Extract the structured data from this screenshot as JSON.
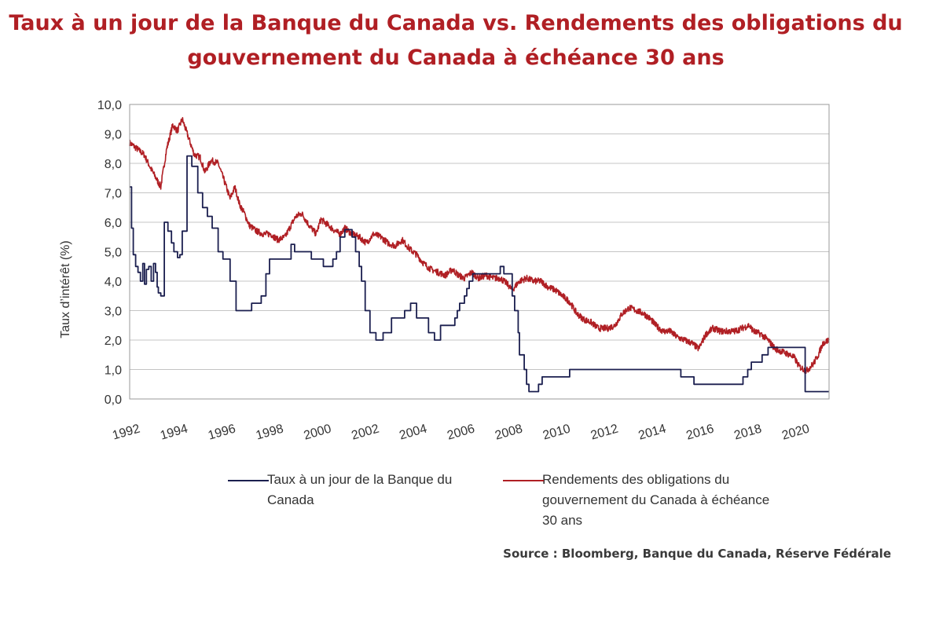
{
  "title_line1": "Taux à un jour de la Banque du Canada vs. Rendements des obligations du",
  "title_line2": "gouvernement du Canada à échéance 30 ans",
  "source": "Source : Bloomberg, Banque du Canada, Réserve Fédérale",
  "chart_data": {
    "type": "line",
    "title": "Taux à un jour de la Banque du Canada vs. Rendements des obligations du gouvernement du Canada à échéance 30 ans",
    "xlabel": "",
    "ylabel": "Taux d’intérêt (%)",
    "xlim": [
      1992,
      2021.25
    ],
    "ylim": [
      0,
      10
    ],
    "x_ticks": [
      1992,
      1994,
      1996,
      1998,
      2000,
      2002,
      2004,
      2006,
      2008,
      2010,
      2012,
      2014,
      2016,
      2018,
      2020
    ],
    "x_tick_labels": [
      "1992",
      "1994",
      "1996",
      "1998",
      "2000",
      "2002",
      "2004",
      "2006",
      "2008",
      "2010",
      "2012",
      "2014",
      "2016",
      "2018",
      "2020"
    ],
    "y_ticks": [
      0,
      1,
      2,
      3,
      4,
      5,
      6,
      7,
      8,
      9,
      10
    ],
    "y_tick_labels": [
      "0,0",
      "1,0",
      "2,0",
      "3,0",
      "4,0",
      "5,0",
      "6,0",
      "7,0",
      "8,0",
      "9,0",
      "10,0"
    ],
    "grid": "horizontal",
    "legend_position": "bottom",
    "series": [
      {
        "name": "Taux à un jour de la Banque du Canada",
        "color": "#1b1f4f",
        "shape": "step",
        "x": [
          1992.0,
          1992.08,
          1992.15,
          1992.25,
          1992.35,
          1992.45,
          1992.55,
          1992.62,
          1992.7,
          1992.8,
          1992.9,
          1993.0,
          1993.08,
          1993.15,
          1993.2,
          1993.3,
          1993.45,
          1993.6,
          1993.75,
          1993.85,
          1994.0,
          1994.1,
          1994.2,
          1994.4,
          1994.6,
          1994.85,
          1995.05,
          1995.25,
          1995.45,
          1995.7,
          1995.9,
          1996.0,
          1996.2,
          1996.45,
          1996.9,
          1997.1,
          1997.5,
          1997.7,
          1997.85,
          1998.3,
          1998.75,
          1998.9,
          1999.1,
          1999.6,
          2000.1,
          2000.5,
          2000.65,
          2000.8,
          2001.0,
          2001.15,
          2001.3,
          2001.45,
          2001.6,
          2001.7,
          2001.85,
          2002.05,
          2002.3,
          2002.5,
          2002.6,
          2002.95,
          2003.3,
          2003.5,
          2003.75,
          2004.0,
          2004.15,
          2004.5,
          2004.75,
          2004.9,
          2005.0,
          2005.3,
          2005.6,
          2005.7,
          2005.8,
          2006.0,
          2006.1,
          2006.2,
          2006.35,
          2006.45,
          2006.55,
          2006.95,
          2007.5,
          2007.65,
          2008.0,
          2008.1,
          2008.25,
          2008.3,
          2008.5,
          2008.6,
          2008.7,
          2008.8,
          2008.9,
          2009.0,
          2009.1,
          2009.25,
          2010.4,
          2010.55,
          2010.7,
          2014.5,
          2015.05,
          2015.6,
          2017.5,
          2017.65,
          2017.85,
          2018.0,
          2018.45,
          2018.7,
          2018.8,
          2020.2,
          2020.25,
          2021.25
        ],
        "y": [
          7.2,
          5.8,
          4.9,
          4.5,
          4.3,
          4.0,
          4.6,
          3.9,
          4.4,
          4.5,
          4.0,
          4.6,
          4.3,
          3.8,
          3.6,
          3.5,
          6.0,
          5.7,
          5.3,
          5.0,
          4.8,
          4.9,
          5.7,
          8.25,
          7.9,
          7.0,
          6.5,
          6.2,
          5.8,
          5.0,
          4.75,
          4.75,
          4.0,
          3.0,
          3.0,
          3.25,
          3.5,
          4.25,
          4.75,
          4.75,
          5.25,
          5.0,
          5.0,
          4.75,
          4.5,
          4.75,
          5.0,
          5.5,
          5.75,
          5.75,
          5.5,
          5.0,
          4.5,
          4.0,
          3.0,
          2.25,
          2.0,
          2.0,
          2.25,
          2.75,
          2.75,
          3.0,
          3.25,
          2.75,
          2.75,
          2.25,
          2.0,
          2.0,
          2.5,
          2.5,
          2.75,
          3.0,
          3.25,
          3.5,
          3.75,
          4.0,
          4.25,
          4.25,
          4.25,
          4.25,
          4.5,
          4.25,
          3.5,
          3.0,
          2.25,
          1.5,
          1.0,
          0.5,
          0.25,
          0.25,
          0.25,
          0.25,
          0.5,
          0.75,
          1.0,
          1.0,
          1.0,
          1.0,
          0.75,
          0.5,
          0.5,
          0.75,
          1.0,
          1.25,
          1.5,
          1.75,
          1.75,
          1.75,
          0.25,
          0.25
        ]
      },
      {
        "name": "Rendements des obligations du gouvernement du Canada à échéance 30 ans",
        "color": "#b01f24",
        "shape": "line",
        "x": [
          1992.0,
          1992.3,
          1992.6,
          1992.9,
          1993.1,
          1993.3,
          1993.55,
          1993.8,
          1994.0,
          1994.2,
          1994.45,
          1994.7,
          1994.95,
          1995.15,
          1995.4,
          1995.7,
          1996.0,
          1996.2,
          1996.4,
          1996.6,
          1996.8,
          1997.0,
          1997.3,
          1997.6,
          1997.9,
          1998.2,
          1998.5,
          1998.75,
          1998.95,
          1999.2,
          1999.5,
          1999.8,
          2000.0,
          2000.3,
          2000.6,
          2000.8,
          2001.0,
          2001.3,
          2001.6,
          2001.9,
          2002.2,
          2002.5,
          2002.8,
          2003.1,
          2003.4,
          2003.7,
          2004.0,
          2004.3,
          2004.6,
          2004.9,
          2005.2,
          2005.5,
          2005.75,
          2006.0,
          2006.3,
          2006.6,
          2006.9,
          2007.2,
          2007.5,
          2007.8,
          2008.0,
          2008.3,
          2008.6,
          2008.9,
          2009.2,
          2009.5,
          2009.8,
          2010.1,
          2010.4,
          2010.7,
          2011.0,
          2011.3,
          2011.6,
          2011.8,
          2012.0,
          2012.3,
          2012.6,
          2012.9,
          2013.2,
          2013.5,
          2013.8,
          2014.0,
          2014.3,
          2014.6,
          2014.9,
          2015.2,
          2015.5,
          2015.8,
          2016.1,
          2016.4,
          2016.7,
          2017.0,
          2017.3,
          2017.6,
          2017.9,
          2018.1,
          2018.4,
          2018.7,
          2019.0,
          2019.3,
          2019.6,
          2019.8,
          2020.0,
          2020.3,
          2020.6,
          2020.8,
          2021.0,
          2021.25
        ],
        "y": [
          8.7,
          8.5,
          8.3,
          7.8,
          7.5,
          7.2,
          8.5,
          9.3,
          9.1,
          9.5,
          8.9,
          8.3,
          8.2,
          7.7,
          8.1,
          8.0,
          7.3,
          6.8,
          7.2,
          6.6,
          6.3,
          5.9,
          5.7,
          5.6,
          5.6,
          5.4,
          5.5,
          5.9,
          6.2,
          6.3,
          5.9,
          5.6,
          6.1,
          5.9,
          5.7,
          5.6,
          5.8,
          5.6,
          5.5,
          5.3,
          5.6,
          5.5,
          5.3,
          5.2,
          5.4,
          5.1,
          4.9,
          4.6,
          4.4,
          4.3,
          4.2,
          4.4,
          4.2,
          4.1,
          4.3,
          4.1,
          4.2,
          4.1,
          4.1,
          3.9,
          3.7,
          4.0,
          4.1,
          4.0,
          4.0,
          3.8,
          3.7,
          3.5,
          3.3,
          2.9,
          2.7,
          2.6,
          2.4,
          2.4,
          2.4,
          2.5,
          2.9,
          3.1,
          3.0,
          2.9,
          2.7,
          2.5,
          2.3,
          2.3,
          2.1,
          2.0,
          1.9,
          1.7,
          2.2,
          2.4,
          2.3,
          2.3,
          2.3,
          2.4,
          2.5,
          2.3,
          2.2,
          2.0,
          1.7,
          1.6,
          1.5,
          1.4,
          1.1,
          0.95,
          1.2,
          1.5,
          1.9,
          2.0
        ]
      }
    ]
  }
}
